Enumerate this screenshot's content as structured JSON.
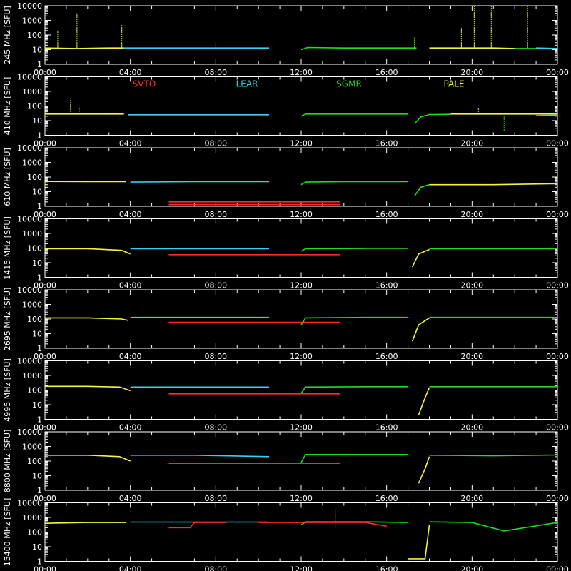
{
  "figure": {
    "background": "#000000",
    "foreground": "#ffffff",
    "legend": [
      "SVTO",
      "LEAR",
      "SGMR",
      "PALE"
    ],
    "legend_colors": [
      "#ff2a2a",
      "#32d2f0",
      "#1fdc1f",
      "#f4f43a"
    ],
    "legend_panel": 1
  },
  "chart_data": {
    "type": "line",
    "scale": "log",
    "ylim": [
      1,
      10000
    ],
    "y_ticks": [
      1,
      10,
      100,
      1000,
      10000
    ],
    "xlim": [
      "00:00",
      "24:00"
    ],
    "x_tick_labels": [
      "00:00",
      "04:00",
      "08:00",
      "12:00",
      "16:00",
      "20:00",
      "00:00"
    ],
    "stations": [
      {
        "name": "SVTO",
        "color": "#ff2a2a"
      },
      {
        "name": "LEAR",
        "color": "#32d2f0"
      },
      {
        "name": "SGMR",
        "color": "#1fdc1f"
      },
      {
        "name": "PALE",
        "color": "#f4f43a"
      }
    ],
    "panels": [
      {
        "label": "245 MHz",
        "unit": "[SFU]",
        "series": [
          {
            "station": "PALE",
            "x": [
              0,
              1.5,
              3.0,
              3.7
            ],
            "y": [
              13,
              12,
              13,
              13
            ]
          },
          {
            "station": "LEAR",
            "x": [
              3.7,
              6.0,
              8.0,
              10.5
            ],
            "y": [
              13,
              13,
              13,
              13
            ]
          },
          {
            "station": "SGMR",
            "x": [
              12.0,
              12.3,
              14.0,
              16.0,
              17.0,
              17.4
            ],
            "y": [
              10,
              14,
              13,
              13,
              13,
              13
            ]
          },
          {
            "station": "PALE",
            "x": [
              18.0,
              20.0,
              21.0,
              22.0
            ],
            "y": [
              13,
              13,
              13,
              12
            ]
          },
          {
            "station": "SGMR",
            "x": [
              22.0,
              22.5,
              24.0
            ],
            "y": [
              12,
              12,
              12
            ]
          },
          {
            "station": "LEAR",
            "x": [
              23.0,
              24.0
            ],
            "y": [
              13,
              12
            ]
          }
        ],
        "spikes": [
          {
            "station": "PALE",
            "x": 0.6,
            "y": 200
          },
          {
            "station": "PALE",
            "x": 1.5,
            "y": 3000
          },
          {
            "station": "PALE",
            "x": 3.6,
            "y": 500
          },
          {
            "station": "PALE",
            "x": 19.5,
            "y": 300
          },
          {
            "station": "PALE",
            "x": 20.1,
            "y": 9000
          },
          {
            "station": "PALE",
            "x": 20.9,
            "y": 10000
          },
          {
            "station": "PALE",
            "x": 22.6,
            "y": 10000
          },
          {
            "station": "SGMR",
            "x": 17.3,
            "y": 70
          },
          {
            "station": "LEAR",
            "x": 8.0,
            "y": 30
          }
        ]
      },
      {
        "label": "410 MHz",
        "unit": "[SFU]",
        "series": [
          {
            "station": "PALE",
            "x": [
              0,
              2.0,
              3.7
            ],
            "y": [
              28,
              28,
              28
            ]
          },
          {
            "station": "LEAR",
            "x": [
              3.9,
              7.0,
              10.5
            ],
            "y": [
              25,
              25,
              25
            ]
          },
          {
            "station": "SGMR",
            "x": [
              12.0,
              12.2,
              14.0,
              17.0
            ],
            "y": [
              20,
              28,
              28,
              28
            ]
          },
          {
            "station": "SGMR",
            "x": [
              17.3,
              17.6,
              18.0,
              19.0
            ],
            "y": [
              6,
              18,
              26,
              27
            ]
          },
          {
            "station": "PALE",
            "x": [
              19.0,
              21.0,
              24.0
            ],
            "y": [
              28,
              28,
              28
            ]
          },
          {
            "station": "LEAR",
            "x": [
              23.0,
              24.0
            ],
            "y": [
              22,
              23
            ]
          }
        ],
        "spikes": [
          {
            "station": "PALE",
            "x": 1.2,
            "y": 300
          },
          {
            "station": "PALE",
            "x": 1.6,
            "y": 80
          },
          {
            "station": "PALE",
            "x": 20.3,
            "y": 70
          },
          {
            "station": "SGMR",
            "x": 21.5,
            "y": 2
          }
        ]
      },
      {
        "label": "610 MHz",
        "unit": "[SFU]",
        "series": [
          {
            "station": "PALE",
            "x": [
              0,
              2.0,
              3.8
            ],
            "y": [
              50,
              48,
              48
            ]
          },
          {
            "station": "LEAR",
            "x": [
              4.0,
              7.0,
              10.5
            ],
            "y": [
              45,
              48,
              48
            ]
          },
          {
            "station": "SVTO",
            "x": [
              5.8,
              13.8
            ],
            "y": [
              2,
              2
            ]
          },
          {
            "station": "SVTO",
            "x": [
              5.8,
              13.8
            ],
            "y": [
              1.3,
              1.3
            ]
          },
          {
            "station": "SGMR",
            "x": [
              12.0,
              12.2,
              14.0,
              17.0
            ],
            "y": [
              30,
              45,
              48,
              48
            ]
          },
          {
            "station": "SGMR",
            "x": [
              17.3,
              17.6,
              18.0
            ],
            "y": [
              5,
              20,
              30
            ]
          },
          {
            "station": "PALE",
            "x": [
              18.0,
              21.0,
              24.0
            ],
            "y": [
              30,
              30,
              35
            ]
          }
        ],
        "spikes": []
      },
      {
        "label": "1415 MHz",
        "unit": "[SFU]",
        "series": [
          {
            "station": "PALE",
            "x": [
              0,
              2.0,
              3.6,
              4.0
            ],
            "y": [
              90,
              90,
              70,
              40
            ]
          },
          {
            "station": "LEAR",
            "x": [
              4.0,
              7.0,
              10.5
            ],
            "y": [
              90,
              90,
              90
            ]
          },
          {
            "station": "SVTO",
            "x": [
              5.8,
              13.8
            ],
            "y": [
              35,
              35
            ]
          },
          {
            "station": "SGMR",
            "x": [
              12.0,
              12.2,
              15.0,
              17.0
            ],
            "y": [
              60,
              90,
              95,
              95
            ]
          },
          {
            "station": "PALE",
            "x": [
              17.2,
              17.5,
              18.0
            ],
            "y": [
              5,
              40,
              80
            ]
          },
          {
            "station": "SGMR",
            "x": [
              18.0,
              21.0,
              24.0
            ],
            "y": [
              90,
              90,
              90
            ]
          }
        ],
        "spikes": []
      },
      {
        "label": "2695 MHz",
        "unit": "[SFU]",
        "series": [
          {
            "station": "PALE",
            "x": [
              0,
              2.0,
              3.6,
              3.9
            ],
            "y": [
              120,
              120,
              100,
              80
            ]
          },
          {
            "station": "LEAR",
            "x": [
              4.0,
              7.0,
              10.5
            ],
            "y": [
              130,
              130,
              130
            ]
          },
          {
            "station": "SVTO",
            "x": [
              5.8,
              13.8
            ],
            "y": [
              60,
              60
            ]
          },
          {
            "station": "SGMR",
            "x": [
              12.0,
              12.2,
              15.0,
              17.0
            ],
            "y": [
              40,
              120,
              130,
              130
            ]
          },
          {
            "station": "PALE",
            "x": [
              17.2,
              17.5,
              18.0
            ],
            "y": [
              3,
              40,
              120
            ]
          },
          {
            "station": "SGMR",
            "x": [
              18.0,
              21.0,
              24.0
            ],
            "y": [
              130,
              130,
              130
            ]
          }
        ],
        "spikes": []
      },
      {
        "label": "4995 MHz",
        "unit": "[SFU]",
        "series": [
          {
            "station": "PALE",
            "x": [
              0,
              2.0,
              3.5,
              4.0
            ],
            "y": [
              180,
              180,
              160,
              90
            ]
          },
          {
            "station": "LEAR",
            "x": [
              4.0,
              7.0,
              10.5
            ],
            "y": [
              160,
              160,
              160
            ]
          },
          {
            "station": "SVTO",
            "x": [
              5.8,
              13.8
            ],
            "y": [
              55,
              55
            ]
          },
          {
            "station": "SGMR",
            "x": [
              12.0,
              12.2,
              15.0,
              17.0
            ],
            "y": [
              60,
              160,
              170,
              170
            ]
          },
          {
            "station": "PALE",
            "x": [
              17.5,
              17.8,
              18.0
            ],
            "y": [
              2,
              30,
              150
            ]
          },
          {
            "station": "SGMR",
            "x": [
              18.0,
              21.0,
              24.0
            ],
            "y": [
              170,
              170,
              170
            ]
          }
        ],
        "spikes": []
      },
      {
        "label": "8800 MHz",
        "unit": "[SFU]",
        "series": [
          {
            "station": "PALE",
            "x": [
              0,
              2.0,
              3.5,
              4.0
            ],
            "y": [
              250,
              250,
              200,
              100
            ]
          },
          {
            "station": "LEAR",
            "x": [
              4.0,
              7.0,
              10.5
            ],
            "y": [
              250,
              250,
              200
            ]
          },
          {
            "station": "SVTO",
            "x": [
              5.8,
              13.8
            ],
            "y": [
              70,
              70
            ]
          },
          {
            "station": "SGMR",
            "x": [
              12.0,
              12.2,
              15.0,
              17.0
            ],
            "y": [
              80,
              280,
              280,
              280
            ]
          },
          {
            "station": "PALE",
            "x": [
              17.5,
              17.8,
              18.0
            ],
            "y": [
              3,
              30,
              200
            ]
          },
          {
            "station": "SGMR",
            "x": [
              18.0,
              21.0,
              24.0
            ],
            "y": [
              250,
              230,
              260
            ]
          }
        ],
        "spikes": []
      },
      {
        "label": "15400 MHz",
        "unit": "[SFU]",
        "series": [
          {
            "station": "PALE",
            "x": [
              0,
              2.0,
              3.8
            ],
            "y": [
              400,
              450,
              450
            ]
          },
          {
            "station": "LEAR",
            "x": [
              4.0,
              7.0,
              10.5
            ],
            "y": [
              480,
              480,
              480
            ]
          },
          {
            "station": "SVTO",
            "x": [
              5.8,
              6.8,
              7.0,
              8.5
            ],
            "y": [
              200,
              200,
              450,
              450
            ]
          },
          {
            "station": "SVTO",
            "x": [
              10.0,
              13.5,
              15.0,
              16.0
            ],
            "y": [
              450,
              450,
              450,
              250
            ]
          },
          {
            "station": "SGMR",
            "x": [
              12.0,
              12.2,
              15.0,
              17.0
            ],
            "y": [
              300,
              500,
              500,
              450
            ]
          },
          {
            "station": "PALE",
            "x": [
              17.0,
              17.8,
              18.0
            ],
            "y": [
              1.5,
              1.5,
              300
            ]
          },
          {
            "station": "SGMR",
            "x": [
              18.0,
              20.0,
              21.5,
              24.0
            ],
            "y": [
              500,
              450,
              120,
              450
            ]
          }
        ],
        "spikes": [
          {
            "station": "SVTO",
            "x": 13.6,
            "y": 4000
          }
        ]
      }
    ]
  }
}
